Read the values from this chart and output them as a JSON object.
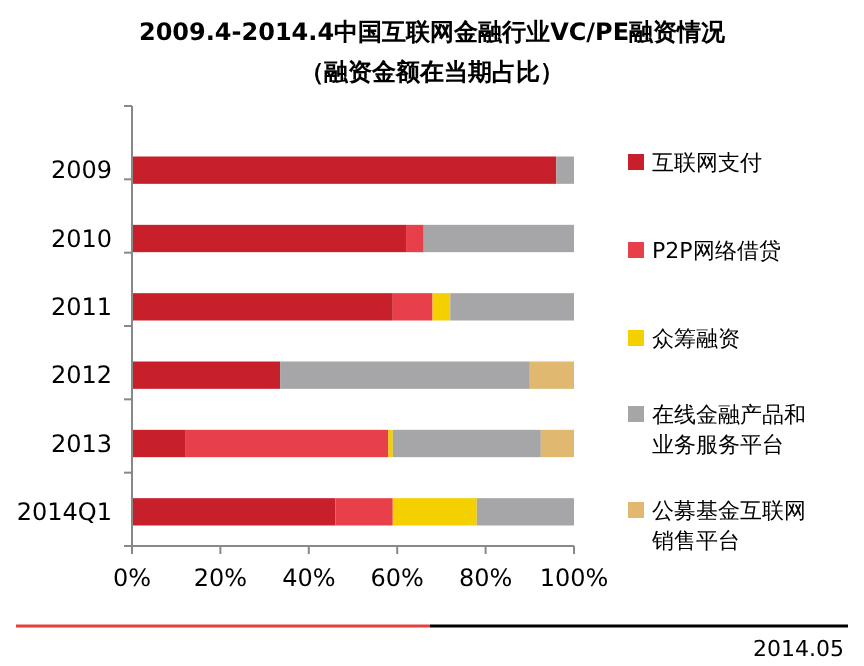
{
  "chart_data": {
    "type": "bar",
    "orientation": "horizontal",
    "stacked": true,
    "title": "2009.4-2014.4中国互联网金融行业VC/PE融资情况",
    "subtitle": "（融资金额在当期占比）",
    "categories": [
      "2009",
      "2010",
      "2011",
      "2012",
      "2013",
      "2014Q1"
    ],
    "series": [
      {
        "name": "互联网支付",
        "color": "#c8202a",
        "values": [
          96,
          62,
          59,
          33.5,
          12,
          46
        ]
      },
      {
        "name": "P2P网络借贷",
        "color": "#e8404a",
        "values": [
          0,
          4,
          9,
          0,
          46,
          13
        ]
      },
      {
        "name": "众筹融资",
        "color": "#f5d000",
        "values": [
          0,
          0,
          4,
          0,
          1,
          19
        ]
      },
      {
        "name": "在线金融产品和业务服务平台",
        "color": "#a6a6a8",
        "values": [
          4,
          34,
          28,
          56.5,
          33.5,
          22
        ]
      },
      {
        "name": "公募基金互联网销售平台",
        "color": "#e0b870",
        "values": [
          0,
          0,
          0,
          10,
          7.5,
          0
        ]
      }
    ],
    "xlim": [
      0,
      100
    ],
    "xticks": [
      {
        "value": 0,
        "label": "0%"
      },
      {
        "value": 20,
        "label": "20%"
      },
      {
        "value": 40,
        "label": "40%"
      },
      {
        "value": 60,
        "label": "60%"
      },
      {
        "value": 80,
        "label": "80%"
      },
      {
        "value": 100,
        "label": "100%"
      }
    ],
    "legend": "right",
    "grid": false,
    "annotations": [
      "2014.05"
    ]
  }
}
